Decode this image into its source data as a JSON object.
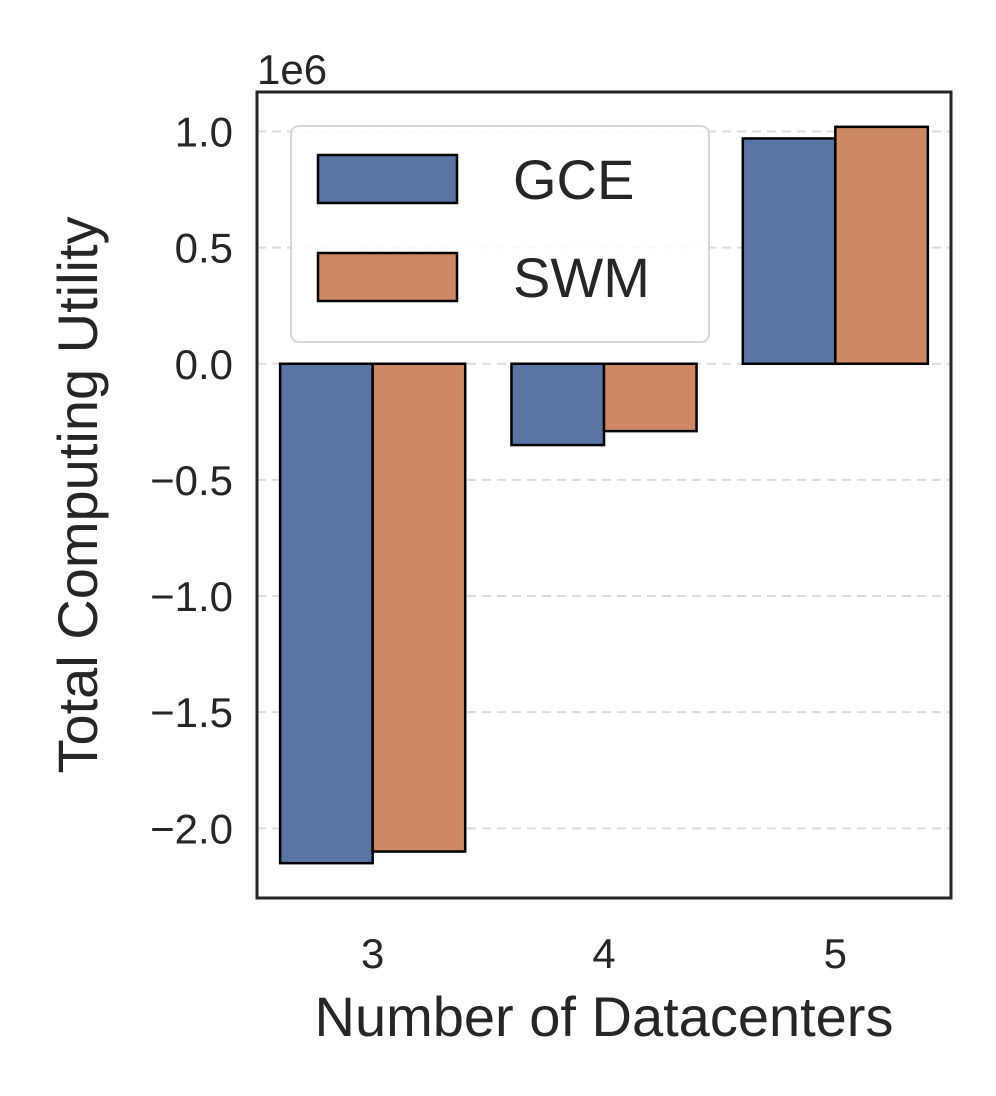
{
  "chart_data": {
    "type": "bar",
    "categories": [
      "3",
      "4",
      "5"
    ],
    "series": [
      {
        "name": "GCE",
        "color": "#5875a4",
        "values": [
          -2150000,
          -350000,
          970000
        ]
      },
      {
        "name": "SWM",
        "color": "#cc8963",
        "values": [
          -2100000,
          -290000,
          1020000
        ]
      }
    ],
    "xlabel": "Number of Datacenters",
    "ylabel": "Total Computing Utility",
    "y_offset_label": "1e6",
    "ylim": [
      -2300000,
      1170000
    ],
    "yticks": [
      -2000000,
      -1500000,
      -1000000,
      -500000,
      0,
      500000,
      1000000
    ],
    "ytick_labels": [
      "−2.0",
      "−1.5",
      "−1.0",
      "−0.5",
      "0.0",
      "0.5",
      "1.0"
    ],
    "grid": "y-dashed",
    "legend": "upper-left"
  }
}
